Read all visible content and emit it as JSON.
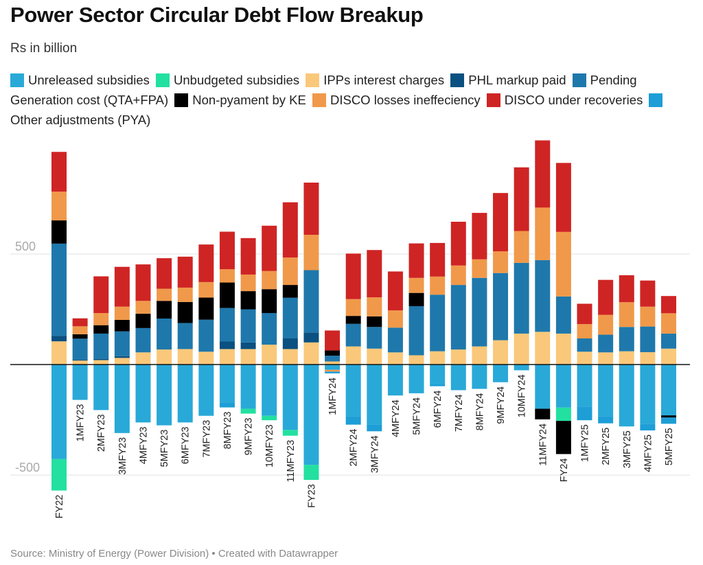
{
  "chart_data": {
    "type": "bar",
    "stacked": true,
    "title": "Power Sector Circular Debt Flow Breakup",
    "subtitle": "Rs in billion",
    "source": "Source: Ministry of Energy (Power Division) • Created with Datawrapper",
    "ylim": [
      -570,
      1000
    ],
    "yticks": [
      500,
      -500
    ],
    "grid": true,
    "legend_position": "top",
    "categories": [
      "FY22",
      "1MFY23",
      "2MFY23",
      "3MFY23",
      "4MFY23",
      "5MFY23",
      "6MFY23",
      "7MFY23",
      "8MFY23",
      "9MFY23",
      "10MFY23",
      "11MFY23",
      "FY23",
      "1MFY24",
      "2MFY24",
      "3MFY24",
      "4MFY24",
      "5MFY24",
      "6MFY24",
      "7MFY24",
      "8MFY24",
      "9MFY24",
      "10MFY24",
      "11MFY24",
      "FY24",
      "1MFY25",
      "2MFY25",
      "3MFY25",
      "4MFY25",
      "5MFY25"
    ],
    "series": [
      {
        "name": "Unreleased subsidies",
        "color": "#29a9d8",
        "values": [
          -428,
          -160,
          -206,
          -310,
          -262,
          -275,
          -262,
          -232,
          -172,
          -200,
          -232,
          -296,
          -454,
          -24,
          -234,
          -272,
          -140,
          -130,
          -90,
          -116,
          -110,
          -80,
          -26,
          -200,
          -195,
          -190,
          -234,
          -280,
          -268,
          -230
        ]
      },
      {
        "name": "Unbudgeted subsidies",
        "color": "#22e0a0",
        "values": [
          -142,
          0,
          0,
          0,
          0,
          0,
          0,
          0,
          0,
          -22,
          -20,
          -26,
          -68,
          0,
          0,
          0,
          0,
          0,
          0,
          0,
          0,
          0,
          0,
          0,
          -60,
          0,
          0,
          0,
          0,
          0
        ]
      },
      {
        "name": "IPPs interest charges",
        "color": "#fac87a",
        "values": [
          105,
          18,
          20,
          30,
          55,
          68,
          70,
          58,
          70,
          70,
          90,
          70,
          100,
          14,
          82,
          72,
          55,
          42,
          60,
          68,
          82,
          110,
          140,
          148,
          140,
          58,
          55,
          60,
          56,
          72
        ]
      },
      {
        "name": "PHL markup paid",
        "color": "#0a5080",
        "values": [
          25,
          4,
          5,
          8,
          0,
          0,
          0,
          0,
          34,
          30,
          0,
          48,
          45,
          0,
          0,
          0,
          0,
          0,
          0,
          0,
          0,
          0,
          0,
          0,
          0,
          0,
          0,
          0,
          0,
          0
        ]
      },
      {
        "name": "Pending Generation cost (QTA+FPA)",
        "color": "#1f78ab",
        "values": [
          417,
          95,
          115,
          112,
          110,
          140,
          118,
          145,
          152,
          150,
          143,
          184,
          282,
          26,
          102,
          98,
          112,
          222,
          256,
          292,
          310,
          304,
          320,
          324,
          168,
          60,
          80,
          110,
          116,
          68
        ]
      },
      {
        "name": "Non-pyament by KE",
        "color": "#000000",
        "values": [
          105,
          20,
          38,
          52,
          65,
          80,
          95,
          100,
          115,
          82,
          108,
          58,
          0,
          24,
          36,
          48,
          0,
          60,
          0,
          0,
          0,
          0,
          0,
          -48,
          -150,
          0,
          0,
          0,
          0,
          -10
        ]
      },
      {
        "name": "DISCO losses ineffeciency",
        "color": "#f0994a",
        "values": [
          130,
          36,
          55,
          60,
          58,
          55,
          65,
          70,
          60,
          75,
          82,
          124,
          160,
          -8,
          76,
          86,
          78,
          68,
          82,
          88,
          84,
          98,
          144,
          238,
          292,
          65,
          90,
          112,
          90,
          92
        ]
      },
      {
        "name": "DISCO under recoveries",
        "color": "#cf2424",
        "values": [
          180,
          36,
          166,
          180,
          165,
          138,
          140,
          170,
          170,
          165,
          205,
          250,
          236,
          90,
          206,
          214,
          176,
          156,
          152,
          198,
          210,
          264,
          288,
          304,
          312,
          92,
          158,
          122,
          118,
          78
        ]
      },
      {
        "name": "Other adjustments (PYA)",
        "color": "#1d9ed6",
        "values": [
          0,
          0,
          0,
          0,
          0,
          0,
          0,
          0,
          -22,
          0,
          0,
          0,
          0,
          -8,
          -38,
          -30,
          0,
          0,
          -8,
          0,
          0,
          0,
          0,
          0,
          0,
          -62,
          -32,
          0,
          -30,
          -28
        ]
      }
    ]
  }
}
